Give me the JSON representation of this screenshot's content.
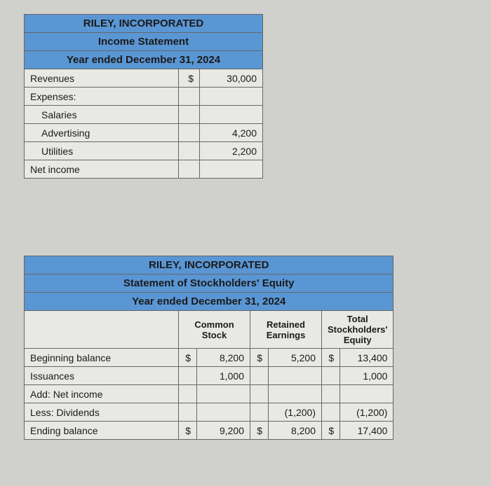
{
  "income_statement": {
    "company": "RILEY, INCORPORATED",
    "title": "Income Statement",
    "period": "Year ended December 31, 2024",
    "rows": {
      "revenues_label": "Revenues",
      "revenues_currency": "$",
      "revenues_value": "30,000",
      "expenses_label": "Expenses:",
      "salaries_label": "Salaries",
      "advertising_label": "Advertising",
      "advertising_value": "4,200",
      "utilities_label": "Utilities",
      "utilities_value": "2,200",
      "net_income_label": "Net income"
    }
  },
  "equity_statement": {
    "company": "RILEY, INCORPORATED",
    "title": "Statement of Stockholders' Equity",
    "period": "Year ended December 31, 2024",
    "columns": {
      "common_stock": "Common Stock",
      "retained_earnings": "Retained Earnings",
      "total_equity": "Total Stockholders' Equity"
    },
    "rows": {
      "beginning_label": "Beginning balance",
      "beginning_cs_cur": "$",
      "beginning_cs_val": "8,200",
      "beginning_re_cur": "$",
      "beginning_re_val": "5,200",
      "beginning_te_cur": "$",
      "beginning_te_val": "13,400",
      "issuances_label": "Issuances",
      "issuances_cs_val": "1,000",
      "issuances_te_val": "1,000",
      "add_ni_label": "Add: Net income",
      "less_div_label": "Less: Dividends",
      "less_div_re_val": "(1,200)",
      "less_div_te_val": "(1,200)",
      "ending_label": "Ending balance",
      "ending_cs_cur": "$",
      "ending_cs_val": "9,200",
      "ending_re_cur": "$",
      "ending_re_val": "8,200",
      "ending_te_cur": "$",
      "ending_te_val": "17,400"
    }
  },
  "colors": {
    "header_bg": "#5a96d4",
    "page_bg": "#d0d0cc",
    "table_bg": "#e8e8e4",
    "border": "#666666"
  }
}
